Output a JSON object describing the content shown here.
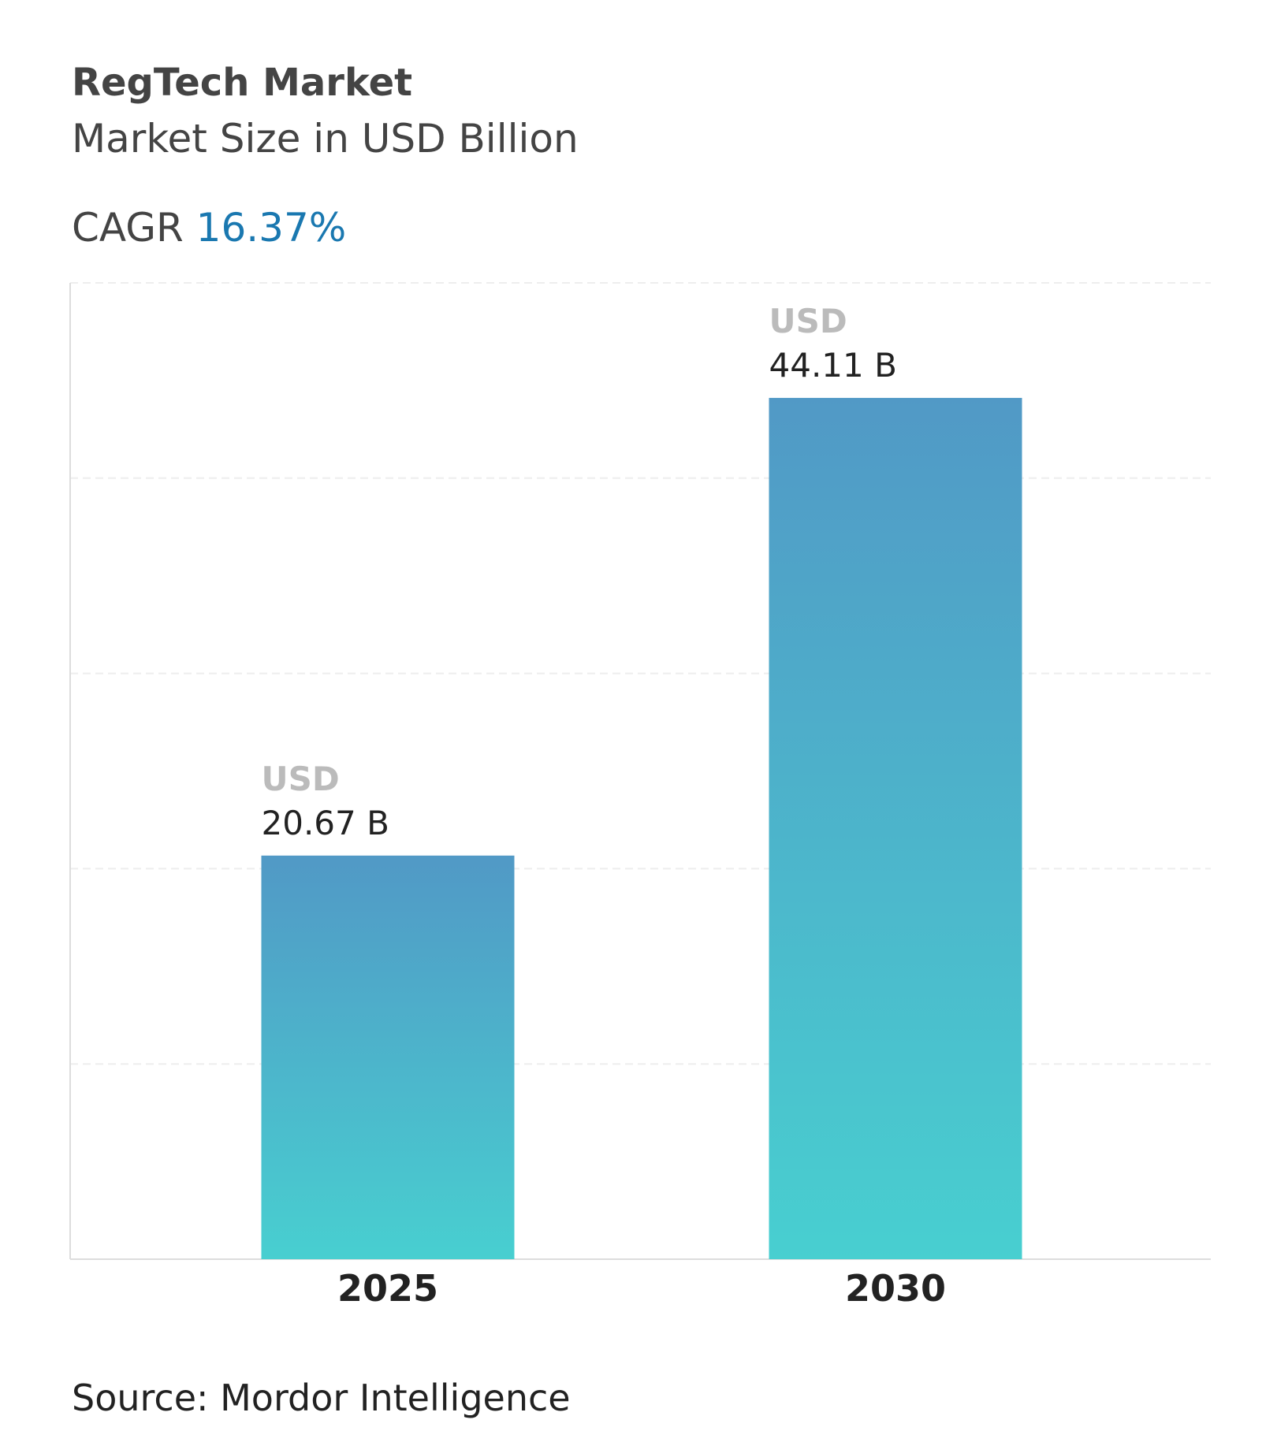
{
  "chart_data": {
    "type": "bar",
    "title": "RegTech Market",
    "subtitle": "Market Size in USD Billion",
    "cagr_label": "CAGR",
    "cagr_value": "16.37%",
    "categories": [
      "2025",
      "2030"
    ],
    "values": [
      20.67,
      44.11
    ],
    "value_label_prefix": "USD",
    "value_labels": [
      "20.67 B",
      "44.11 B"
    ],
    "gradient": [
      "#5199c6",
      "#48cfd0"
    ],
    "ylim": [
      0,
      50
    ],
    "yticks": [
      0,
      10,
      20,
      30,
      40,
      50
    ],
    "grid": true,
    "source": "Source: Mordor Intelligence"
  }
}
